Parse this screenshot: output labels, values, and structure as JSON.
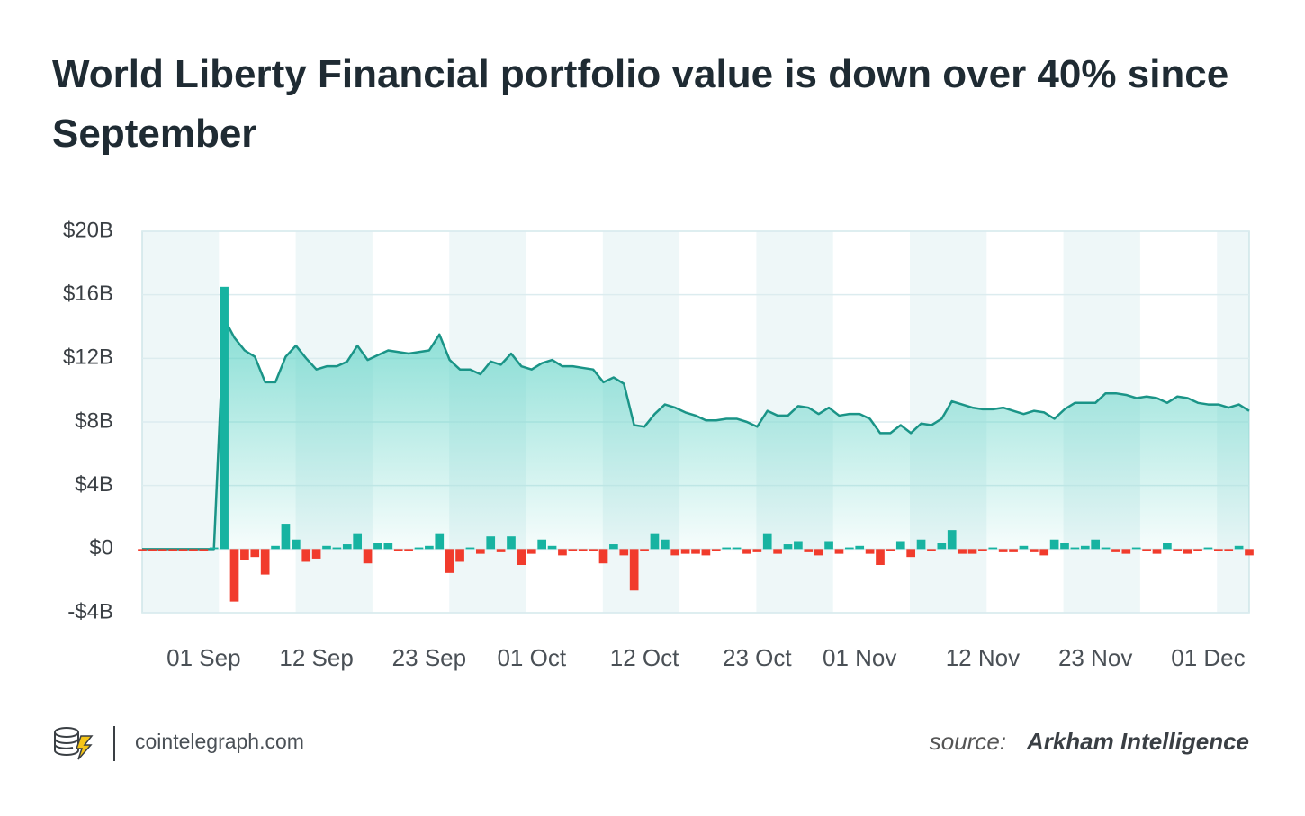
{
  "chart_data": {
    "type": "line-bar",
    "title": "World Liberty Financial portfolio value is down over 40% since September",
    "brand": "cointelegraph.com",
    "source_label": "source:",
    "source": "Arkham Intelligence",
    "categories": [
      null,
      null,
      null,
      null,
      null,
      null,
      "01 Sep",
      null,
      null,
      null,
      null,
      null,
      null,
      null,
      null,
      null,
      null,
      "12 Sep",
      null,
      null,
      null,
      null,
      null,
      null,
      null,
      null,
      null,
      null,
      "23 Sep",
      null,
      null,
      null,
      null,
      null,
      null,
      null,
      null,
      null,
      "01 Oct",
      null,
      null,
      null,
      null,
      null,
      null,
      null,
      null,
      null,
      null,
      "12 Oct",
      null,
      null,
      null,
      null,
      null,
      null,
      null,
      null,
      null,
      null,
      "23 Oct",
      null,
      null,
      null,
      null,
      null,
      null,
      null,
      null,
      null,
      "01 Nov",
      null,
      null,
      null,
      null,
      null,
      null,
      null,
      null,
      null,
      null,
      null,
      "12 Nov",
      null,
      null,
      null,
      null,
      null,
      null,
      null,
      null,
      null,
      null,
      "23 Nov",
      null,
      null,
      null,
      null,
      null,
      null,
      null,
      null,
      null,
      null,
      "01 Dec",
      null,
      null,
      null,
      null
    ],
    "series": [
      {
        "type": "area",
        "color": "#1a9487",
        "fill": "#5fd3c6",
        "values": [
          0,
          0,
          0,
          0,
          0,
          0,
          0,
          0,
          14.5,
          13.3,
          12.5,
          12.1,
          10.5,
          10.5,
          12.1,
          12.8,
          12.0,
          11.3,
          11.5,
          11.5,
          11.8,
          12.8,
          11.9,
          12.2,
          12.5,
          12.4,
          12.3,
          12.4,
          12.5,
          13.5,
          11.9,
          11.3,
          11.3,
          11.0,
          11.8,
          11.6,
          12.3,
          11.5,
          11.3,
          11.7,
          11.9,
          11.5,
          11.5,
          11.4,
          11.3,
          10.5,
          10.8,
          10.4,
          7.8,
          7.7,
          8.5,
          9.1,
          8.9,
          8.6,
          8.4,
          8.1,
          8.1,
          8.2,
          8.2,
          8.0,
          7.7,
          8.7,
          8.4,
          8.4,
          9.0,
          8.9,
          8.5,
          8.9,
          8.4,
          8.5,
          8.5,
          8.2,
          7.3,
          7.3,
          7.8,
          7.3,
          7.9,
          7.8,
          8.2,
          9.3,
          9.1,
          8.9,
          8.8,
          8.8,
          8.9,
          8.7,
          8.5,
          8.7,
          8.6,
          8.2,
          8.8,
          9.2,
          9.2,
          9.2,
          9.8,
          9.8,
          9.7,
          9.5,
          9.6,
          9.5,
          9.2,
          9.6,
          9.5,
          9.2,
          9.1,
          9.1,
          8.9,
          9.1,
          8.7
        ]
      },
      {
        "type": "bar",
        "color": "#17b3a1",
        "negative_color": "#f13b2c",
        "values": [
          -0.1,
          -0.1,
          -0.1,
          -0.1,
          -0.1,
          -0.1,
          -0.1,
          0.1,
          16.5,
          -3.3,
          -0.7,
          -0.5,
          -1.6,
          0.2,
          1.6,
          0.6,
          -0.8,
          -0.6,
          0.2,
          0.1,
          0.3,
          1.0,
          -0.9,
          0.4,
          0.4,
          -0.1,
          -0.1,
          0.1,
          0.2,
          1.0,
          -1.5,
          -0.8,
          0.1,
          -0.3,
          0.8,
          -0.2,
          0.8,
          -1.0,
          -0.3,
          0.6,
          0.2,
          -0.4,
          -0.1,
          -0.1,
          -0.1,
          -0.9,
          0.3,
          -0.4,
          -2.6,
          -0.1,
          1.0,
          0.6,
          -0.4,
          -0.3,
          -0.3,
          -0.4,
          -0.1,
          0.1,
          0.1,
          -0.3,
          -0.2,
          1.0,
          -0.3,
          0.3,
          0.5,
          -0.2,
          -0.4,
          0.5,
          -0.3,
          0.1,
          0.2,
          -0.3,
          -1.0,
          -0.1,
          0.5,
          -0.5,
          0.6,
          -0.1,
          0.4,
          1.2,
          -0.3,
          -0.3,
          -0.1,
          0.1,
          -0.2,
          -0.2,
          0.2,
          -0.2,
          -0.4,
          0.6,
          0.4,
          0.1,
          0.2,
          0.6,
          0.1,
          -0.2,
          -0.3,
          0.1,
          -0.1,
          -0.3,
          0.4,
          -0.1,
          -0.3,
          -0.1,
          0.1,
          -0.1,
          -0.1,
          0.2,
          -0.4
        ]
      }
    ],
    "ylim": [
      -4,
      20
    ],
    "yticks": [
      {
        "value": -4,
        "label": "-$4B"
      },
      {
        "value": 0,
        "label": "$0"
      },
      {
        "value": 4,
        "label": "$4B"
      },
      {
        "value": 8,
        "label": "$8B"
      },
      {
        "value": 12,
        "label": "$12B"
      },
      {
        "value": 16,
        "label": "$16B"
      },
      {
        "value": 20,
        "label": "$20B"
      }
    ],
    "grid": true
  }
}
